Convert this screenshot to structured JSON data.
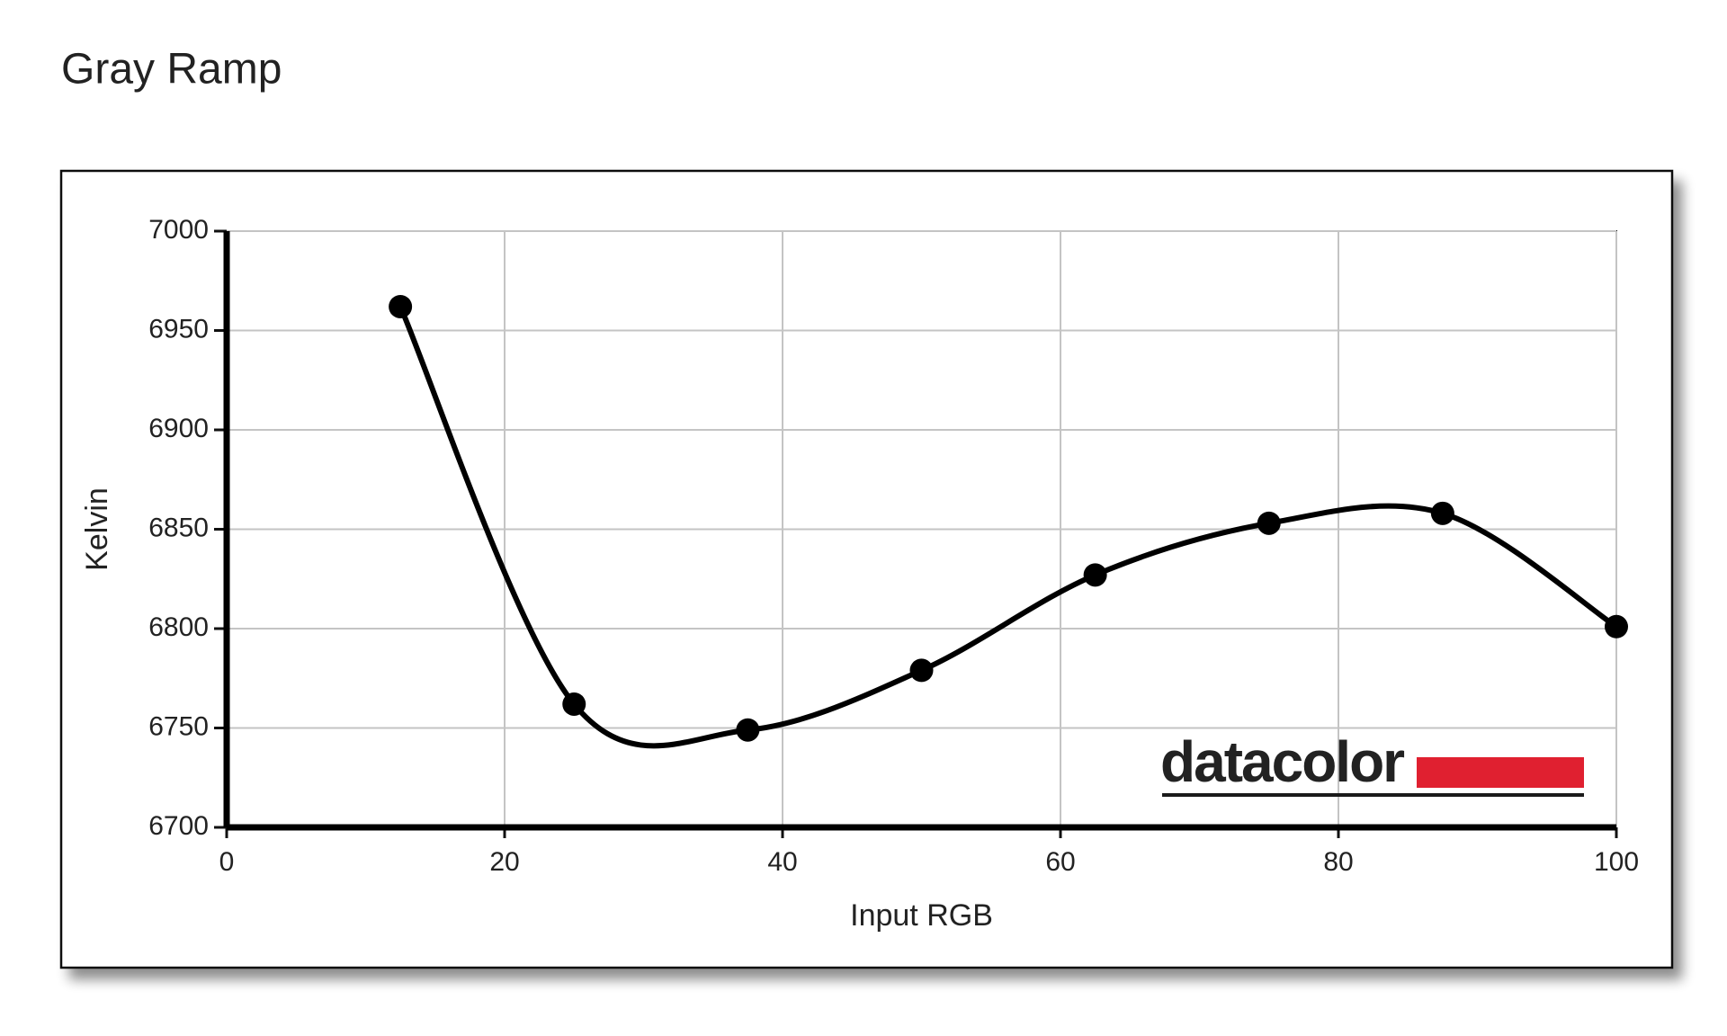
{
  "chart_data": {
    "type": "line",
    "title": "Gray Ramp",
    "x_label": "Input RGB",
    "y_label": "Kelvin",
    "watermark": "datacolor",
    "x": [
      12.5,
      25,
      37.5,
      50,
      62.5,
      75,
      87.5,
      100
    ],
    "series": [
      {
        "color": "#000000",
        "values": [
          6962,
          6762,
          6749,
          6779,
          6827,
          6853,
          6858,
          6801
        ]
      }
    ],
    "xlim": [
      0,
      100
    ],
    "xticks": [
      0,
      20,
      40,
      60,
      80,
      100
    ],
    "ylim": [
      6700,
      7000
    ],
    "yticks": [
      6700,
      6750,
      6800,
      6850,
      6900,
      6950,
      7000
    ],
    "grid": true
  }
}
